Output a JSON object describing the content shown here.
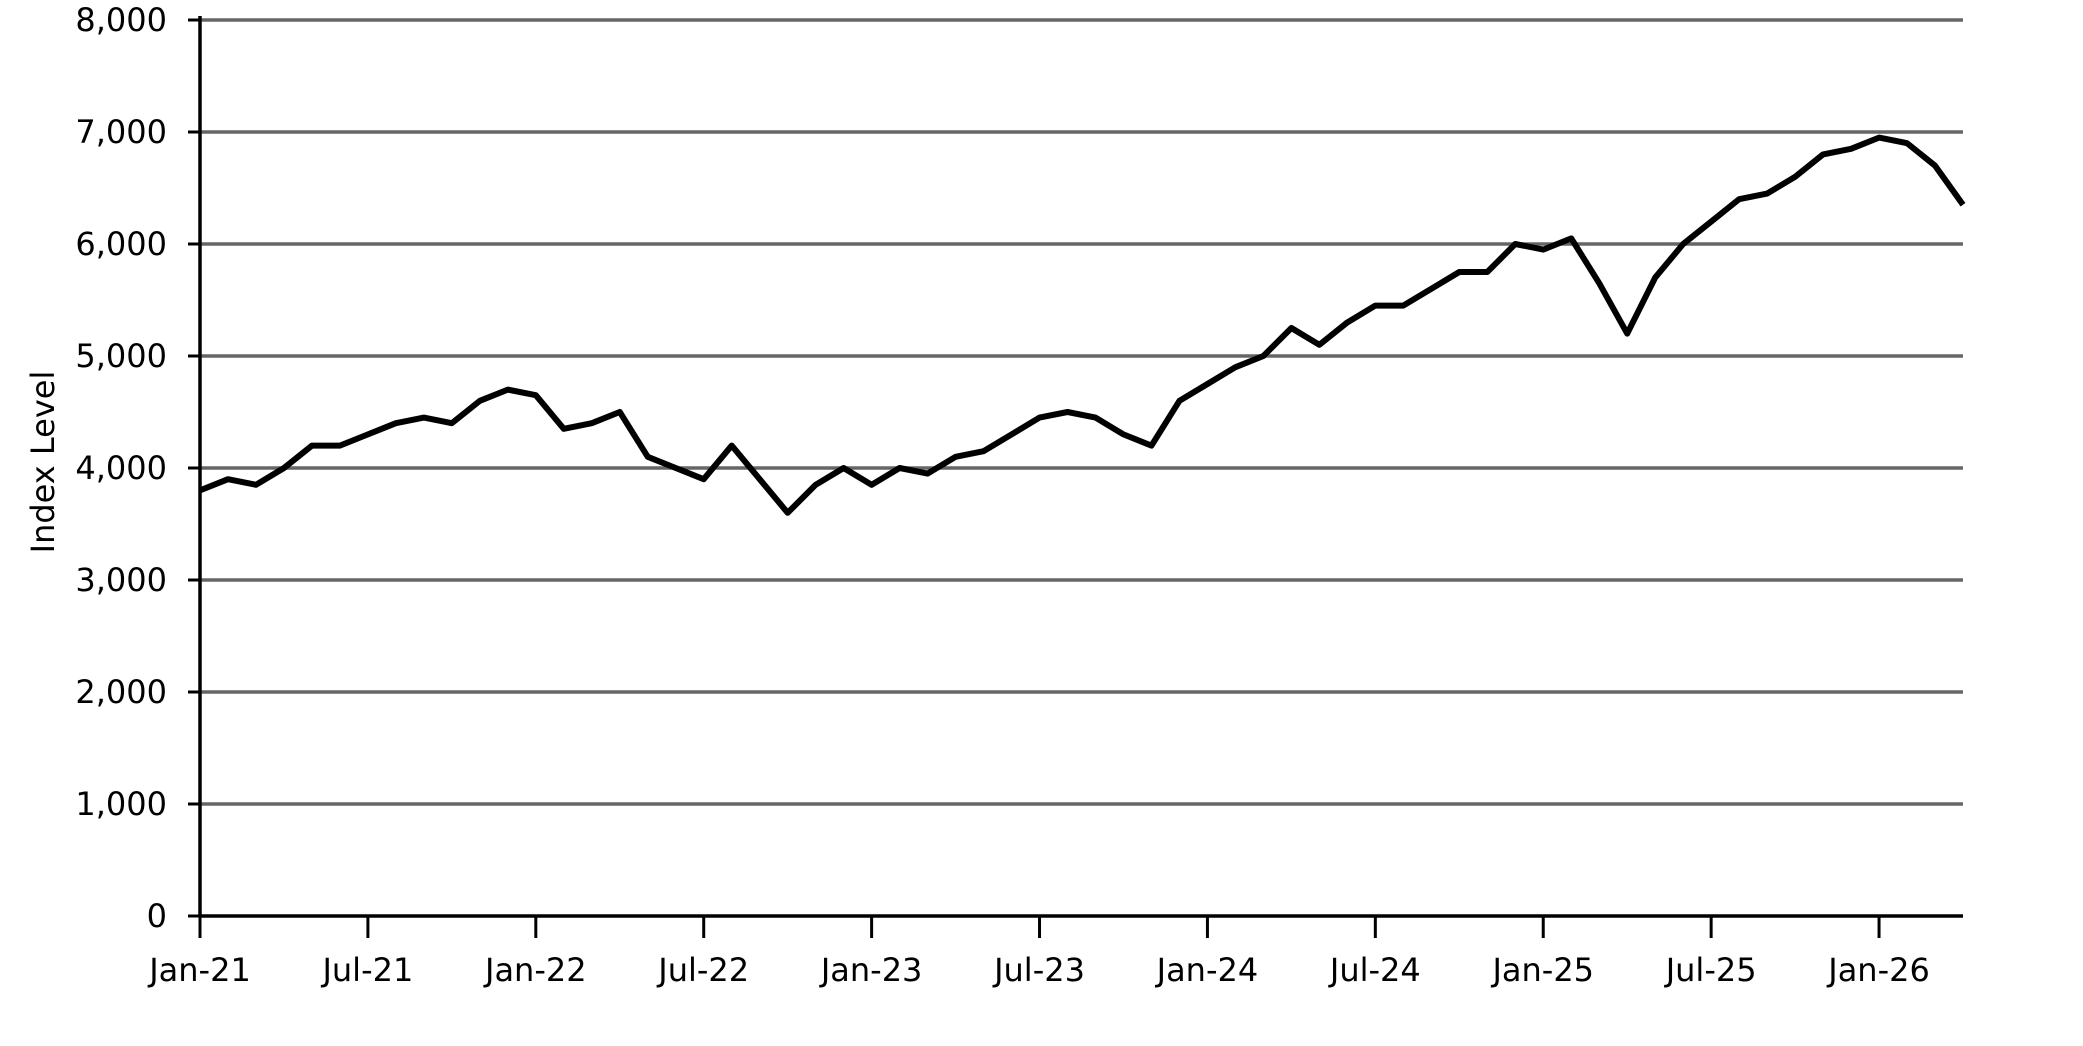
{
  "chart_data": {
    "type": "line",
    "y_label": "Index Level",
    "x": [
      "2021-01",
      "2021-02",
      "2021-03",
      "2021-04",
      "2021-05",
      "2021-06",
      "2021-07",
      "2021-08",
      "2021-09",
      "2021-10",
      "2021-11",
      "2021-12",
      "2022-01",
      "2022-02",
      "2022-03",
      "2022-04",
      "2022-05",
      "2022-06",
      "2022-07",
      "2022-08",
      "2022-09",
      "2022-10",
      "2022-11",
      "2022-12",
      "2023-01",
      "2023-02",
      "2023-03",
      "2023-04",
      "2023-05",
      "2023-06",
      "2023-07",
      "2023-08",
      "2023-09",
      "2023-10",
      "2023-11",
      "2023-12",
      "2024-01",
      "2024-02",
      "2024-03",
      "2024-04",
      "2024-05",
      "2024-06",
      "2024-07",
      "2024-08",
      "2024-09",
      "2024-10",
      "2024-11",
      "2024-12",
      "2025-01",
      "2025-02",
      "2025-03",
      "2025-04",
      "2025-05",
      "2025-06",
      "2025-07",
      "2025-08",
      "2025-09",
      "2025-10",
      "2025-11",
      "2025-12",
      "2026-01",
      "2026-02",
      "2026-03",
      "2026-04"
    ],
    "series": [
      {
        "color": "#000000",
        "values": [
          3800,
          3900,
          3850,
          4000,
          4200,
          4200,
          4300,
          4400,
          4450,
          4400,
          4600,
          4700,
          4650,
          4350,
          4400,
          4500,
          4100,
          4000,
          3900,
          4200,
          3900,
          3600,
          3850,
          4000,
          3850,
          4000,
          3950,
          4100,
          4150,
          4300,
          4450,
          4500,
          4450,
          4300,
          4200,
          4600,
          4750,
          4900,
          5000,
          5250,
          5100,
          5300,
          5450,
          5450,
          5600,
          5750,
          5750,
          6000,
          5950,
          6050,
          5650,
          5200,
          5700,
          6000,
          6200,
          6400,
          6450,
          6600,
          6800,
          6850,
          6950,
          6900,
          6700,
          6350
        ]
      }
    ],
    "xlim": [
      "2021-01",
      "2026-04"
    ],
    "xticks": [
      {
        "value": "2021-01",
        "label": "Jan-21"
      },
      {
        "value": "2021-07",
        "label": "Jul-21"
      },
      {
        "value": "2022-01",
        "label": "Jan-22"
      },
      {
        "value": "2022-07",
        "label": "Jul-22"
      },
      {
        "value": "2023-01",
        "label": "Jan-23"
      },
      {
        "value": "2023-07",
        "label": "Jul-23"
      },
      {
        "value": "2024-01",
        "label": "Jan-24"
      },
      {
        "value": "2024-07",
        "label": "Jul-24"
      },
      {
        "value": "2025-01",
        "label": "Jan-25"
      },
      {
        "value": "2025-07",
        "label": "Jul-25"
      },
      {
        "value": "2026-01",
        "label": "Jan-26"
      }
    ],
    "ylim": [
      0,
      8000
    ],
    "yticks": [
      0,
      {
        "value": 1000,
        "label": "1,000"
      },
      {
        "value": 2000,
        "label": "2,000"
      },
      {
        "value": 3000,
        "label": "3,000"
      },
      {
        "value": 4000,
        "label": "4,000"
      },
      {
        "value": 5000,
        "label": "5,000"
      },
      {
        "value": 6000,
        "label": "6,000"
      },
      {
        "value": 7000,
        "label": "7,000"
      },
      {
        "value": 8000,
        "label": "8,000"
      }
    ],
    "grid": true
  }
}
